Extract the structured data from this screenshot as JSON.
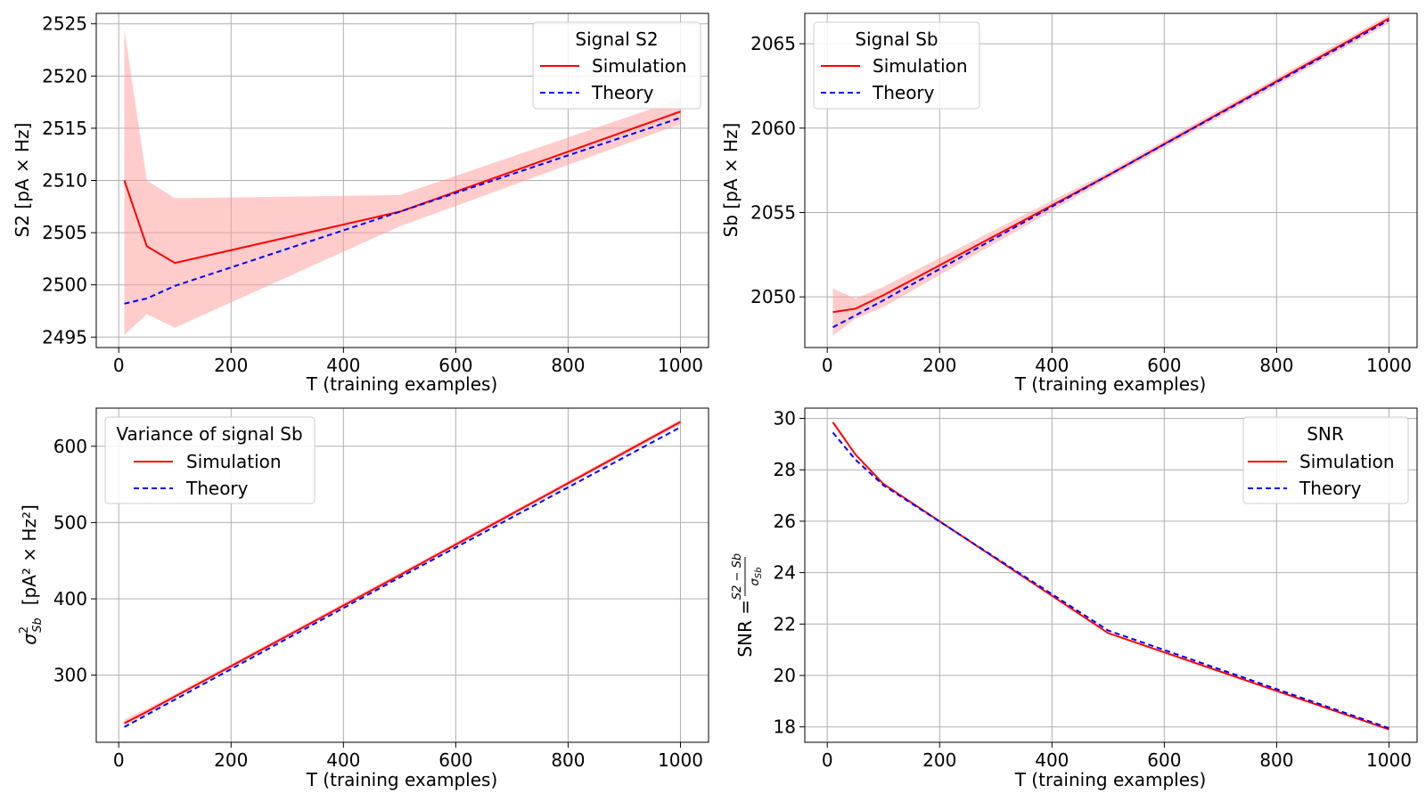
{
  "colors": {
    "simulation": "#ff0000",
    "theory": "#0000ff",
    "band": "#ff9999",
    "grid": "#b0b0b0"
  },
  "chart_data": [
    {
      "id": "s2",
      "type": "line",
      "title": "",
      "xlabel": "T (training examples)",
      "ylabel": "S2 [pA × Hz]",
      "xlim": [
        -40,
        1050
      ],
      "ylim": [
        2494,
        2526
      ],
      "xticks": [
        0,
        200,
        400,
        600,
        800,
        1000
      ],
      "yticks": [
        2495,
        2500,
        2505,
        2510,
        2515,
        2520,
        2525
      ],
      "grid": true,
      "legend": {
        "title": "Signal S2",
        "placement": "upper-right"
      },
      "x": [
        10,
        50,
        100,
        500,
        1000
      ],
      "series": [
        {
          "name": "Simulation",
          "style": "solid",
          "values": [
            2510.0,
            2503.7,
            2502.1,
            2507.0,
            2516.6
          ]
        },
        {
          "name": "Theory",
          "style": "dashed",
          "values": [
            2498.2,
            2498.7,
            2499.9,
            2507.0,
            2516.0
          ]
        }
      ],
      "band": {
        "lower": [
          2495.2,
          2497.2,
          2495.9,
          2505.6,
          2515.4
        ],
        "upper": [
          2524.5,
          2510.0,
          2508.3,
          2508.6,
          2517.8
        ]
      }
    },
    {
      "id": "sb",
      "type": "line",
      "title": "",
      "xlabel": "T (training examples)",
      "ylabel": "Sb [pA × Hz]",
      "xlim": [
        -40,
        1050
      ],
      "ylim": [
        2047.0,
        2066.8
      ],
      "xticks": [
        0,
        200,
        400,
        600,
        800,
        1000
      ],
      "yticks": [
        2050,
        2055,
        2060,
        2065
      ],
      "grid": true,
      "legend": {
        "title": "Signal Sb",
        "placement": "upper-left"
      },
      "x": [
        10,
        50,
        100,
        500,
        1000
      ],
      "series": [
        {
          "name": "Simulation",
          "style": "solid",
          "values": [
            2049.1,
            2049.3,
            2050.1,
            2057.2,
            2066.5
          ]
        },
        {
          "name": "Theory",
          "style": "dashed",
          "values": [
            2048.2,
            2048.9,
            2049.8,
            2057.2,
            2066.4
          ]
        }
      ],
      "band": {
        "lower": [
          2047.7,
          2048.7,
          2049.4,
          2057.0,
          2066.2
        ],
        "upper": [
          2050.5,
          2049.9,
          2050.6,
          2057.4,
          2066.7
        ]
      }
    },
    {
      "id": "var",
      "type": "line",
      "title": "",
      "xlabel": "T (training examples)",
      "ylabel_prefix": "σ",
      "ylabel_sup": "2",
      "ylabel_sub": "Sb",
      "ylabel_unit": "[pA² × Hz²]",
      "xlim": [
        -40,
        1050
      ],
      "ylim": [
        212,
        650
      ],
      "xticks": [
        0,
        200,
        400,
        600,
        800,
        1000
      ],
      "yticks": [
        300,
        400,
        500,
        600
      ],
      "grid": true,
      "legend": {
        "title": "Variance of signal Sb",
        "placement": "upper-left"
      },
      "x": [
        10,
        50,
        100,
        500,
        1000
      ],
      "series": [
        {
          "name": "Simulation",
          "style": "solid",
          "values": [
            237,
            252,
            272,
            431,
            632
          ]
        },
        {
          "name": "Theory",
          "style": "dashed",
          "values": [
            232,
            248,
            268,
            428,
            625
          ]
        }
      ],
      "band": {
        "lower": [
          234,
          249,
          270,
          429,
          629
        ],
        "upper": [
          242,
          256,
          275,
          434,
          635
        ]
      }
    },
    {
      "id": "snr",
      "type": "line",
      "title": "",
      "xlabel": "T (training examples)",
      "ylabel_prefix": "SNR =",
      "ylabel_num": "S2 − Sb",
      "ylabel_den": "σ",
      "ylabel_den_sub": "Sb",
      "xlim": [
        -40,
        1050
      ],
      "ylim": [
        17.4,
        30.4
      ],
      "xticks": [
        0,
        200,
        400,
        600,
        800,
        1000
      ],
      "yticks": [
        18,
        20,
        22,
        24,
        26,
        28,
        30
      ],
      "grid": true,
      "legend": {
        "title": "SNR",
        "placement": "upper-right"
      },
      "x": [
        10,
        50,
        100,
        500,
        1000
      ],
      "series": [
        {
          "name": "Simulation",
          "style": "solid",
          "values": [
            29.85,
            28.6,
            27.45,
            21.65,
            17.9
          ]
        },
        {
          "name": "Theory",
          "style": "dashed",
          "values": [
            29.45,
            28.4,
            27.4,
            21.75,
            17.95
          ]
        }
      ]
    }
  ]
}
